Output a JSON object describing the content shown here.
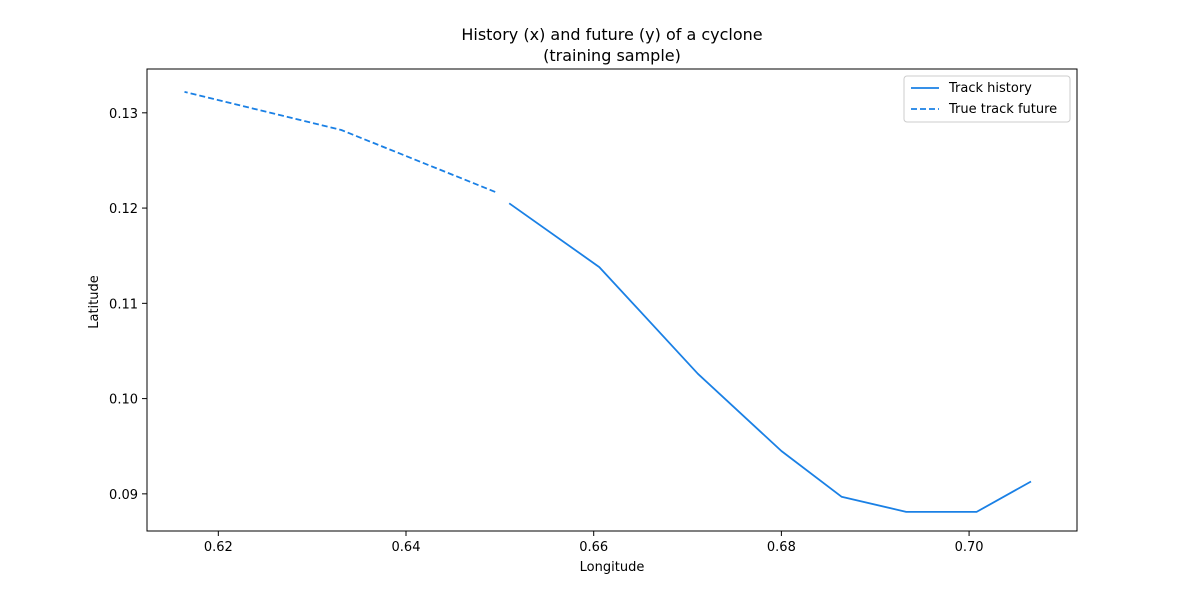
{
  "chart_data": {
    "type": "line",
    "title": "History (x) and future (y) of a cyclone",
    "subtitle": "(training sample)",
    "xlabel": "Longitude",
    "ylabel": "Latitude",
    "xlim": [
      0.6124,
      0.7115
    ],
    "ylim": [
      0.0861,
      0.1346
    ],
    "xticks": [
      "0.62",
      "0.64",
      "0.66",
      "0.68",
      "0.70"
    ],
    "xtick_values": [
      0.62,
      0.64,
      0.66,
      0.68,
      0.7
    ],
    "yticks": [
      "0.09",
      "0.10",
      "0.11",
      "0.12",
      "0.13"
    ],
    "ytick_values": [
      0.09,
      0.1,
      0.11,
      0.12,
      0.13
    ],
    "grid": false,
    "legend_position": "top-right",
    "series": [
      {
        "name": "Track history",
        "style": "solid",
        "color": "#1a80e5",
        "points": [
          [
            0.7066,
            0.0913
          ],
          [
            0.7008,
            0.0881
          ],
          [
            0.6933,
            0.0881
          ],
          [
            0.6864,
            0.0897
          ],
          [
            0.68,
            0.0945
          ],
          [
            0.6711,
            0.1026
          ],
          [
            0.6606,
            0.1138
          ],
          [
            0.651,
            0.1205
          ]
        ]
      },
      {
        "name": "True track future",
        "style": "dashed",
        "color": "#1a80e5",
        "points": [
          [
            0.6495,
            0.1217
          ],
          [
            0.6331,
            0.1282
          ],
          [
            0.6164,
            0.1322
          ]
        ]
      }
    ]
  }
}
